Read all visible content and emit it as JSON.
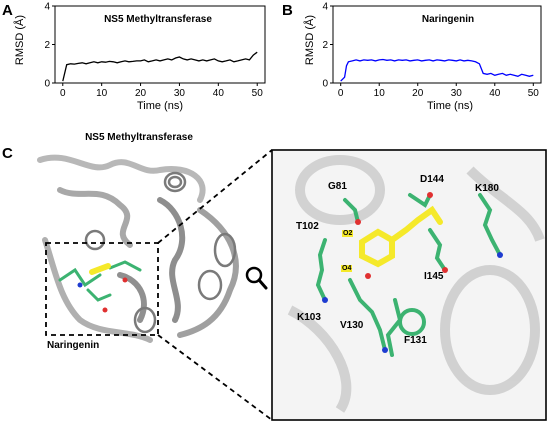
{
  "panels": {
    "a": "A",
    "b": "B",
    "c": "C"
  },
  "chart_data": [
    {
      "type": "line",
      "title": "NS5 Methyltransferase",
      "xlabel": "Time (ns)",
      "ylabel": "RMSD (Å)",
      "xlim": [
        -2,
        52
      ],
      "ylim": [
        0,
        4
      ],
      "xticks": [
        0,
        10,
        20,
        30,
        40,
        50
      ],
      "yticks": [
        0,
        2,
        4
      ],
      "color": "#000000",
      "series": [
        {
          "x": [
            0,
            1,
            2,
            3,
            4,
            5,
            6,
            7,
            8,
            9,
            10,
            11,
            12,
            13,
            14,
            15,
            16,
            17,
            18,
            19,
            20,
            21,
            22,
            23,
            24,
            25,
            26,
            27,
            28,
            29,
            30,
            31,
            32,
            33,
            34,
            35,
            36,
            37,
            38,
            39,
            40,
            41,
            42,
            43,
            44,
            45,
            46,
            47,
            48,
            49,
            50
          ],
          "values": [
            0.1,
            0.95,
            1.0,
            0.98,
            1.02,
            1.05,
            1.0,
            1.05,
            1.1,
            1.05,
            1.1,
            1.08,
            1.12,
            1.1,
            1.05,
            1.1,
            1.15,
            1.1,
            1.12,
            1.15,
            1.15,
            1.2,
            1.1,
            1.15,
            1.2,
            1.15,
            1.2,
            1.25,
            1.2,
            1.3,
            1.35,
            1.25,
            1.2,
            1.25,
            1.2,
            1.15,
            1.2,
            1.15,
            1.2,
            1.25,
            1.15,
            1.1,
            1.15,
            1.2,
            1.1,
            1.15,
            1.2,
            1.25,
            1.2,
            1.45,
            1.6
          ]
        }
      ]
    },
    {
      "type": "line",
      "title": "Naringenin",
      "xlabel": "Time (ns)",
      "ylabel": "RMSD (Å)",
      "xlim": [
        -2,
        52
      ],
      "ylim": [
        0,
        4
      ],
      "xticks": [
        0,
        10,
        20,
        30,
        40,
        50
      ],
      "yticks": [
        0,
        2,
        4
      ],
      "color": "#0000ff",
      "series": [
        {
          "x": [
            0,
            1,
            1.5,
            2,
            3,
            4,
            5,
            6,
            7,
            8,
            9,
            10,
            11,
            12,
            13,
            14,
            15,
            16,
            17,
            18,
            19,
            20,
            21,
            22,
            23,
            24,
            25,
            26,
            27,
            28,
            29,
            30,
            31,
            32,
            33,
            34,
            35,
            36,
            37,
            38,
            39,
            40,
            41,
            42,
            43,
            44,
            45,
            46,
            47,
            48,
            49,
            50
          ],
          "values": [
            0.1,
            0.3,
            0.9,
            1.1,
            1.15,
            1.2,
            1.15,
            1.2,
            1.18,
            1.2,
            1.15,
            1.2,
            1.22,
            1.18,
            1.2,
            1.15,
            1.2,
            1.18,
            1.2,
            1.15,
            1.18,
            1.2,
            1.15,
            1.18,
            1.2,
            1.15,
            1.2,
            1.18,
            1.15,
            1.2,
            1.18,
            1.15,
            1.2,
            1.15,
            1.18,
            1.15,
            1.1,
            1.0,
            0.5,
            0.45,
            0.5,
            0.4,
            0.45,
            0.5,
            0.4,
            0.45,
            0.4,
            0.35,
            0.45,
            0.4,
            0.35,
            0.4
          ]
        }
      ]
    }
  ],
  "structure_c": {
    "title": "NS5 Methyltransferase",
    "ligand_label": "Naringenin",
    "residues": [
      "G81",
      "D144",
      "K180",
      "T102",
      "I145",
      "K103",
      "V130",
      "F131"
    ],
    "atoms": [
      "O2",
      "O4"
    ]
  },
  "icons": [
    "magnifier-icon"
  ]
}
